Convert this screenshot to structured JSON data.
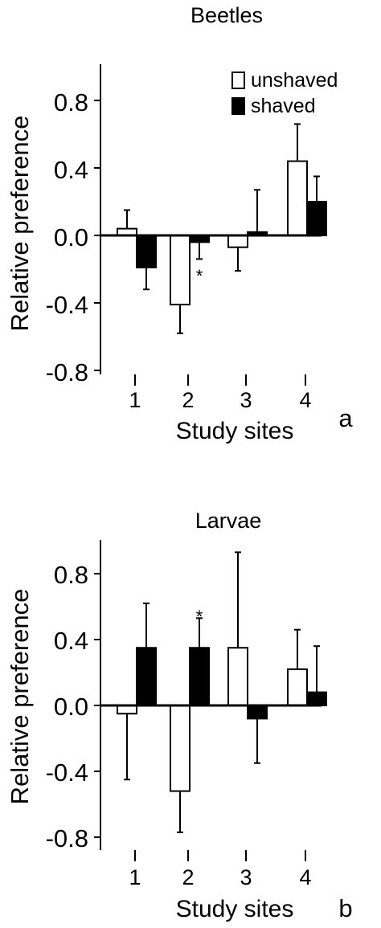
{
  "chart_data": [
    {
      "type": "bar",
      "panel_letter": "a",
      "title": "Beetles",
      "xlabel": "Study sites",
      "ylabel": "Relative preference",
      "categories": [
        "1",
        "2",
        "3",
        "4"
      ],
      "yticks": [
        "0.8",
        "0.4",
        "0.0",
        "-0.4",
        "-0.8"
      ],
      "ylim": [
        -0.8,
        1.0
      ],
      "legend": {
        "placement": "top-right",
        "entries": [
          "unshaved",
          "shaved"
        ]
      },
      "series": [
        {
          "name": "unshaved",
          "fill": "#ffffff",
          "values": [
            0.04,
            -0.41,
            -0.07,
            0.44
          ],
          "error": [
            0.11,
            0.17,
            0.14,
            0.22
          ]
        },
        {
          "name": "shaved",
          "fill": "#000000",
          "values": [
            -0.19,
            -0.04,
            0.02,
            0.2
          ],
          "error": [
            0.13,
            0.1,
            0.25,
            0.15
          ]
        }
      ],
      "annotations": [
        {
          "text": "*",
          "category": "2",
          "y": -0.21
        }
      ]
    },
    {
      "type": "bar",
      "panel_letter": "b",
      "title": "Larvae",
      "xlabel": "Study sites",
      "ylabel": "Relative preference",
      "categories": [
        "1",
        "2",
        "3",
        "4"
      ],
      "yticks": [
        "0.8",
        "0.4",
        "0.0",
        "-0.4",
        "-0.8"
      ],
      "ylim": [
        -0.86,
        1.0
      ],
      "series": [
        {
          "name": "unshaved",
          "fill": "#ffffff",
          "values": [
            -0.05,
            -0.52,
            0.35,
            0.22
          ],
          "error": [
            0.4,
            0.25,
            0.58,
            0.24
          ]
        },
        {
          "name": "shaved",
          "fill": "#000000",
          "values": [
            0.35,
            0.35,
            -0.08,
            0.08
          ],
          "error": [
            0.27,
            0.18,
            0.27,
            0.28
          ]
        }
      ],
      "annotations": [
        {
          "text": "*",
          "category": "2",
          "y": 0.57
        }
      ]
    }
  ]
}
